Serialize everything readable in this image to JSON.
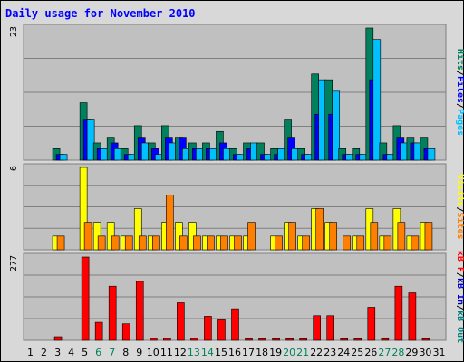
{
  "chart_data": {
    "type": "bar",
    "title": "Daily usage for November 2010",
    "colors": {
      "hits": "#00805c",
      "files": "#0000ff",
      "pages": "#00c0ff",
      "visits": "#ffff00",
      "sites": "#ff8000",
      "kb_in": "#0000c0",
      "kb_out": "#008080",
      "kb_f": "#ff0000",
      "weekend_day": "#00805c",
      "weekday_day": "#000000",
      "plot_bg": "#c0c0c0",
      "border": "#808080",
      "title": "#0000ff"
    },
    "days": [
      "1",
      "2",
      "3",
      "4",
      "5",
      "6",
      "7",
      "8",
      "9",
      "10",
      "11",
      "12",
      "13",
      "14",
      "15",
      "16",
      "17",
      "18",
      "19",
      "20",
      "21",
      "22",
      "23",
      "24",
      "25",
      "26",
      "27",
      "28",
      "29",
      "30",
      "31"
    ],
    "weekend_days": [
      "6",
      "7",
      "13",
      "14",
      "20",
      "21",
      "27",
      "28"
    ],
    "panels": [
      {
        "id": "hits",
        "max_label": "23",
        "ymax": 23,
        "side_labels": [
          {
            "text": "Hits",
            "color": "#00805c"
          },
          {
            "text": "/",
            "color": "#000000"
          },
          {
            "text": "Files",
            "color": "#0000ff"
          },
          {
            "text": "/",
            "color": "#000000"
          },
          {
            "text": "Pages",
            "color": "#00c0ff"
          }
        ],
        "series": [
          {
            "key": "hits",
            "values": [
              0,
              0,
              2,
              0,
              10,
              3,
              4,
              2,
              6,
              3,
              6,
              4,
              3,
              3,
              5,
              2,
              3,
              3,
              2,
              7,
              2,
              15,
              14,
              2,
              2,
              23,
              3,
              6,
              4,
              4,
              0
            ]
          },
          {
            "key": "files",
            "values": [
              0,
              0,
              1,
              0,
              7,
              2,
              3,
              1,
              4,
              2,
              4,
              4,
              2,
              2,
              3,
              1,
              2,
              1,
              1,
              4,
              1,
              8,
              8,
              1,
              1,
              14,
              1,
              4,
              3,
              2,
              0
            ]
          },
          {
            "key": "pages",
            "values": [
              0,
              0,
              1,
              0,
              7,
              2,
              2,
              1,
              3,
              1,
              3,
              2,
              2,
              2,
              2,
              1,
              3,
              1,
              2,
              2,
              1,
              14,
              12,
              1,
              1,
              21,
              1,
              3,
              3,
              2,
              0
            ]
          }
        ]
      },
      {
        "id": "visits",
        "max_label": "6",
        "ymax": 6,
        "side_labels": [
          {
            "text": "Visits",
            "color": "#ffff00"
          },
          {
            "text": "/",
            "color": "#000000"
          },
          {
            "text": "Sites",
            "color": "#ff8000"
          }
        ],
        "series": [
          {
            "key": "visits",
            "values": [
              0,
              0,
              1,
              0,
              6,
              2,
              2,
              1,
              3,
              1,
              2,
              2,
              2,
              1,
              1,
              1,
              1,
              0,
              1,
              2,
              1,
              3,
              2,
              0,
              1,
              3,
              1,
              3,
              1,
              2,
              0
            ]
          },
          {
            "key": "sites",
            "values": [
              0,
              0,
              1,
              0,
              2,
              1,
              1,
              1,
              1,
              1,
              4,
              1,
              1,
              1,
              1,
              1,
              2,
              0,
              1,
              2,
              1,
              3,
              2,
              1,
              1,
              2,
              1,
              2,
              1,
              2,
              0
            ]
          }
        ]
      },
      {
        "id": "kbytes",
        "max_label": "277",
        "ymax": 277,
        "side_labels": [
          {
            "text": "kB F",
            "color": "#ff0000"
          },
          {
            "text": "/",
            "color": "#000000"
          },
          {
            "text": "kB In",
            "color": "#0000c0"
          },
          {
            "text": "/",
            "color": "#000000"
          },
          {
            "text": "kB Out",
            "color": "#008080"
          }
        ],
        "series": [
          {
            "key": "kb_f",
            "values": [
              0,
              0,
              12,
              0,
              277,
              60,
              180,
              55,
              196,
              6,
              6,
              125,
              6,
              80,
              68,
              105,
              5,
              5,
              5,
              5,
              5,
              82,
              82,
              5,
              5,
              110,
              5,
              180,
              158,
              5,
              0
            ]
          }
        ]
      }
    ]
  }
}
